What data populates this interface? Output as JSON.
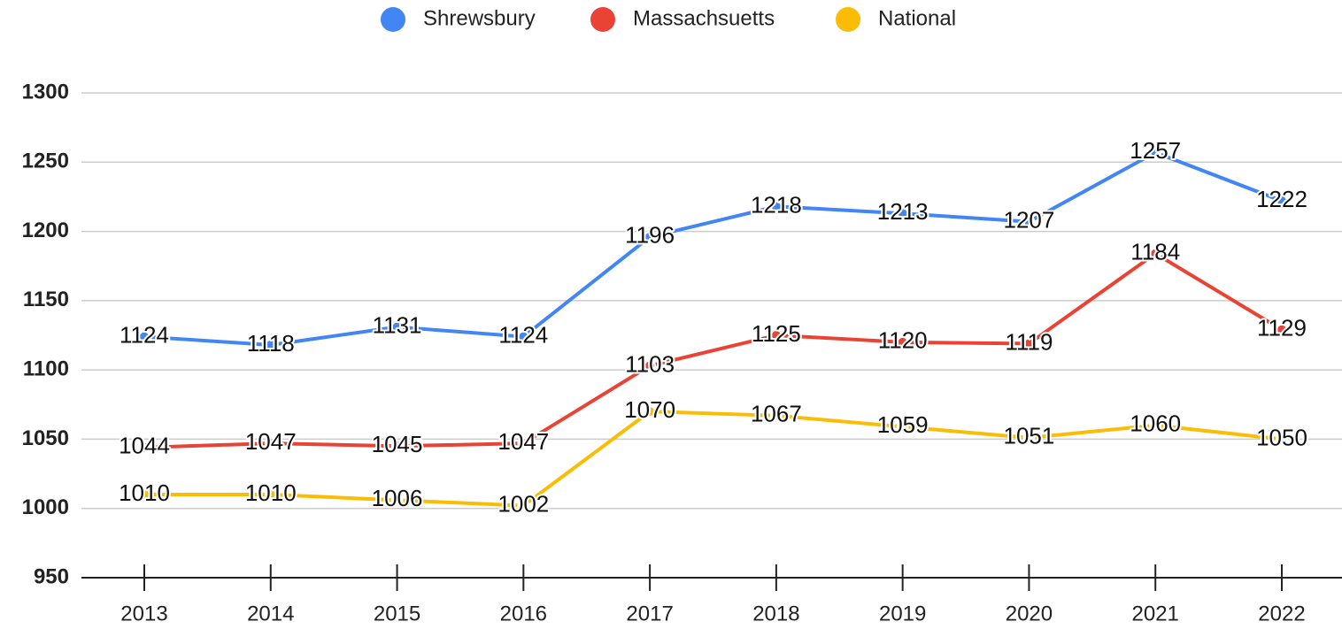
{
  "chart_data": {
    "type": "line",
    "categories": [
      "2013",
      "2014",
      "2015",
      "2016",
      "2017",
      "2018",
      "2019",
      "2020",
      "2021",
      "2022"
    ],
    "series": [
      {
        "name": "Shrewsbury",
        "color": "#4285f4",
        "values": [
          1124,
          1118,
          1131,
          1124,
          1196,
          1218,
          1213,
          1207,
          1257,
          1222
        ]
      },
      {
        "name": "Massachsuetts",
        "color": "#ea4335",
        "values": [
          1044,
          1047,
          1045,
          1047,
          1103,
          1125,
          1120,
          1119,
          1184,
          1129
        ]
      },
      {
        "name": "National",
        "color": "#fbbc04",
        "values": [
          1010,
          1010,
          1006,
          1002,
          1070,
          1067,
          1059,
          1051,
          1060,
          1050
        ]
      }
    ],
    "ylim": [
      950,
      1300
    ],
    "yticks": [
      950,
      1000,
      1050,
      1100,
      1150,
      1200,
      1250,
      1300
    ],
    "grid": true,
    "legend": "top"
  }
}
